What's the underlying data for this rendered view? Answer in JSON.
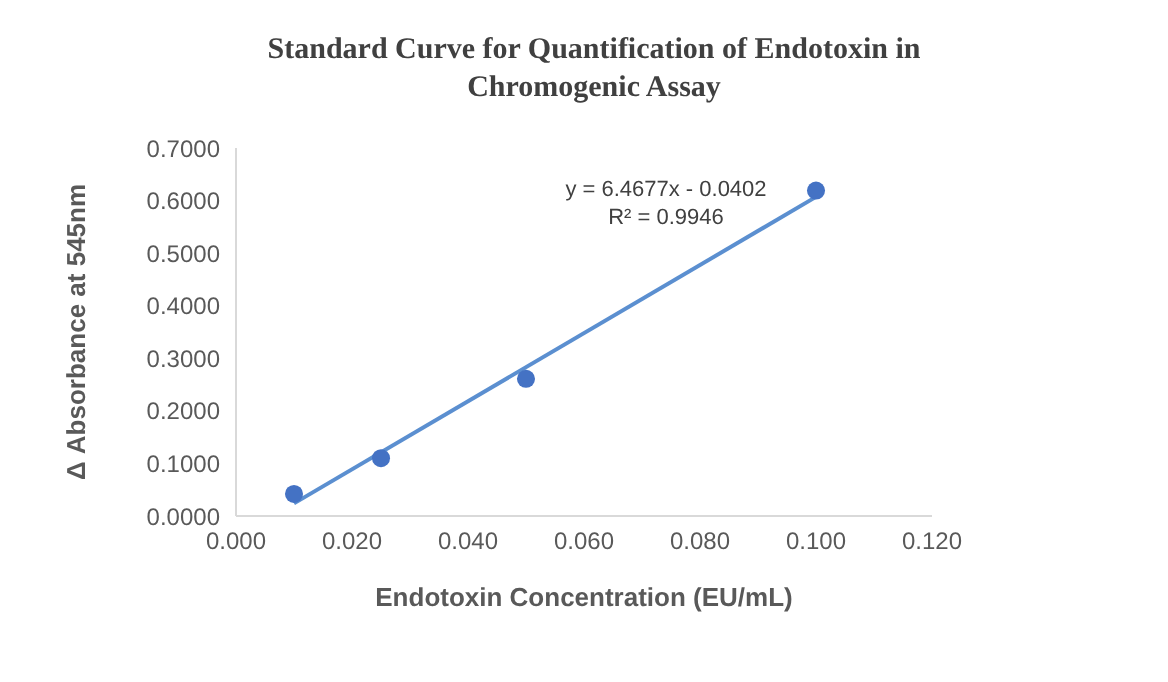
{
  "chart_data": {
    "type": "scatter",
    "title": "Standard Curve for Quantification of Endotoxin in Chromogenic Assay",
    "xlabel": "Endotoxin Concentration  (EU/mL)",
    "ylabel": "Δ Absorbance at 545nm",
    "x": [
      0.01,
      0.025,
      0.05,
      0.1
    ],
    "series": [
      {
        "color": "#4472c4",
        "marker": "circle",
        "values": [
          0.042,
          0.11,
          0.261,
          0.619
        ]
      },
      {
        "type": "line",
        "color": "#5b8fd0",
        "marker": "none",
        "line_style": "solid",
        "x": [
          0.01,
          0.1
        ],
        "values": [
          0.024,
          0.607
        ]
      }
    ],
    "xlim": [
      0,
      0.12
    ],
    "xticks": [
      {
        "value": 0,
        "label": "0.000"
      },
      {
        "value": 0.02,
        "label": "0.020"
      },
      {
        "value": 0.04,
        "label": "0.040"
      },
      {
        "value": 0.06,
        "label": "0.060"
      },
      {
        "value": 0.08,
        "label": "0.080"
      },
      {
        "value": 0.1,
        "label": "0.100"
      },
      {
        "value": 0.12,
        "label": "0.120"
      }
    ],
    "ylim": [
      0,
      0.7
    ],
    "yticks": [
      {
        "value": 0,
        "label": "0.0000"
      },
      {
        "value": 0.1,
        "label": "0.1000"
      },
      {
        "value": 0.2,
        "label": "0.2000"
      },
      {
        "value": 0.3,
        "label": "0.3000"
      },
      {
        "value": 0.4,
        "label": "0.4000"
      },
      {
        "value": 0.5,
        "label": "0.5000"
      },
      {
        "value": 0.6,
        "label": "0.6000"
      },
      {
        "value": 0.7,
        "label": "0.7000"
      }
    ],
    "grid": false,
    "annotations": [
      "y = 6.4677x - 0.0402",
      "R² = 0.9946"
    ]
  }
}
